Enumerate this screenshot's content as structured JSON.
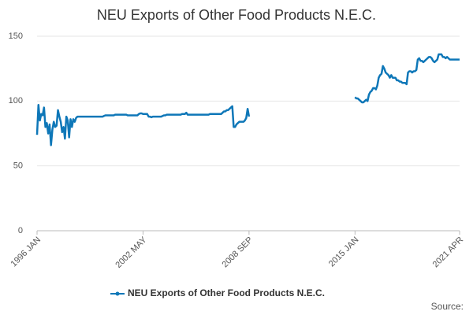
{
  "chart_data": {
    "type": "line",
    "title": "NEU Exports of Other Food Products N.E.C.",
    "source": "Source:",
    "categories": [
      "1996 JAN",
      null,
      null,
      null,
      null,
      null,
      null,
      null,
      null,
      null,
      null,
      null,
      null,
      null,
      null,
      null,
      null,
      null,
      null,
      null,
      null,
      null,
      null,
      null,
      null,
      null,
      null,
      null,
      null,
      null,
      null,
      null,
      null,
      null,
      null,
      null,
      null,
      null,
      null,
      null,
      null,
      null,
      null,
      null,
      null,
      null,
      null,
      null,
      null,
      null,
      null,
      null,
      null,
      null,
      null,
      null,
      null,
      null,
      null,
      null,
      null,
      null,
      null,
      null,
      null,
      null,
      null,
      null,
      null,
      null,
      null,
      null,
      null,
      null,
      null,
      null,
      "2002 MAY",
      null,
      null,
      null,
      null,
      null,
      null,
      null,
      null,
      null,
      null,
      null,
      null,
      null,
      null,
      null,
      null,
      null,
      null,
      null,
      null,
      null,
      null,
      null,
      null,
      null,
      null,
      null,
      null,
      null,
      null,
      null,
      null,
      null,
      null,
      null,
      null,
      null,
      null,
      null,
      null,
      null,
      null,
      null,
      null,
      null,
      null,
      null,
      null,
      null,
      null,
      null,
      null,
      null,
      null,
      null,
      null,
      null,
      null,
      null,
      null,
      null,
      null,
      null,
      null,
      null,
      null,
      null,
      null,
      null,
      null,
      null,
      null,
      null,
      null,
      null,
      "2008 SEP",
      null,
      null,
      null,
      null,
      null,
      null,
      null,
      null,
      null,
      null,
      null,
      null,
      null,
      null,
      null,
      null,
      null,
      null,
      null,
      null,
      null,
      null,
      null,
      null,
      null,
      null,
      null,
      null,
      null,
      null,
      null,
      null,
      null,
      null,
      null,
      null,
      null,
      null,
      null,
      null,
      null,
      null,
      null,
      null,
      null,
      null,
      null,
      null,
      null,
      null,
      null,
      null,
      null,
      null,
      null,
      null,
      null,
      null,
      null,
      null,
      null,
      null,
      null,
      null,
      null,
      null,
      null,
      null,
      null,
      null,
      null,
      null,
      null,
      null,
      null,
      "2015 JAN",
      null,
      null,
      null,
      null,
      null,
      null,
      null,
      null,
      null,
      null,
      null,
      null,
      null,
      null,
      null,
      null,
      null,
      null,
      null,
      null,
      null,
      null,
      null,
      null,
      null,
      null,
      null,
      null,
      null,
      null,
      null,
      null,
      null,
      null,
      null,
      null,
      null,
      null,
      null,
      null,
      null,
      null,
      null,
      null,
      null,
      null,
      null,
      null,
      null,
      null,
      null,
      null,
      null,
      null,
      null,
      null,
      null,
      null,
      null,
      null,
      null,
      null,
      null,
      null,
      null,
      null,
      null,
      null,
      null,
      null,
      null,
      null,
      null,
      null,
      "2021 APR"
    ],
    "series": [
      {
        "name": "NEU Exports of Other Food Products N.E.C.",
        "color": "#0e77b8",
        "values": [
          74,
          97,
          85,
          90,
          89,
          95,
          80,
          83,
          75,
          82,
          66,
          78,
          84,
          80,
          81,
          93,
          88,
          84,
          76,
          80,
          71,
          88,
          85,
          72,
          86,
          80,
          86,
          84,
          87,
          88,
          88,
          88,
          88,
          88,
          88,
          88,
          88,
          88,
          88,
          88,
          88,
          88,
          88,
          88,
          88,
          88,
          88,
          88,
          88.5,
          89,
          89,
          89,
          89,
          89,
          89,
          89,
          89.5,
          89.5,
          89.5,
          89.5,
          89.5,
          89.5,
          89.5,
          89.5,
          89.5,
          89,
          89,
          89,
          89,
          89,
          89,
          89,
          89,
          90,
          90.5,
          90.5,
          90,
          90,
          90,
          90,
          88,
          88,
          87.5,
          88,
          88,
          88,
          88,
          88,
          88,
          88,
          88.5,
          89,
          89,
          89.5,
          89.5,
          89.5,
          89.5,
          89.5,
          89.5,
          89.5,
          89.5,
          89.5,
          89.5,
          89.5,
          90,
          90,
          90,
          91,
          89.5,
          89.5,
          89.5,
          89.5,
          89.5,
          89.5,
          89.5,
          89.5,
          89.5,
          89.5,
          89.5,
          89.5,
          89.5,
          89.5,
          89.5,
          89.5,
          90,
          90,
          90,
          90,
          90,
          90,
          90,
          90,
          90,
          91,
          92,
          92,
          93,
          93,
          94,
          95,
          96,
          80,
          80,
          82,
          83,
          84,
          84,
          84,
          84,
          85,
          87,
          94,
          88,
          null,
          null,
          null,
          null,
          null,
          null,
          null,
          null,
          null,
          null,
          null,
          null,
          null,
          null,
          null,
          null,
          null,
          null,
          null,
          null,
          null,
          null,
          null,
          null,
          null,
          null,
          null,
          null,
          null,
          null,
          null,
          null,
          null,
          null,
          null,
          null,
          null,
          null,
          null,
          null,
          null,
          null,
          null,
          null,
          null,
          null,
          null,
          null,
          null,
          null,
          null,
          null,
          null,
          null,
          null,
          null,
          null,
          null,
          null,
          null,
          null,
          null,
          null,
          null,
          null,
          null,
          null,
          null,
          null,
          null,
          null,
          null,
          null,
          null,
          null,
          103,
          102,
          102,
          101,
          100,
          99,
          99,
          100,
          101,
          100,
          105,
          107,
          108,
          110,
          110,
          109,
          112,
          118,
          120,
          121,
          127,
          125,
          122,
          121,
          120,
          118,
          120,
          118,
          118,
          118,
          116,
          116,
          115,
          115,
          114,
          114,
          114,
          113,
          122,
          123,
          123,
          122,
          123,
          123,
          124,
          132,
          133,
          131,
          131,
          130,
          131,
          132,
          133,
          134,
          134,
          133,
          131,
          130,
          131,
          132,
          136,
          136,
          136,
          134,
          134,
          133,
          134,
          133,
          132,
          132,
          132,
          132,
          132,
          132,
          132,
          132
        ]
      }
    ],
    "ylim": [
      0,
      150
    ],
    "yticks": [
      0,
      50,
      100,
      150
    ],
    "grid": true,
    "legend": "bottom"
  }
}
